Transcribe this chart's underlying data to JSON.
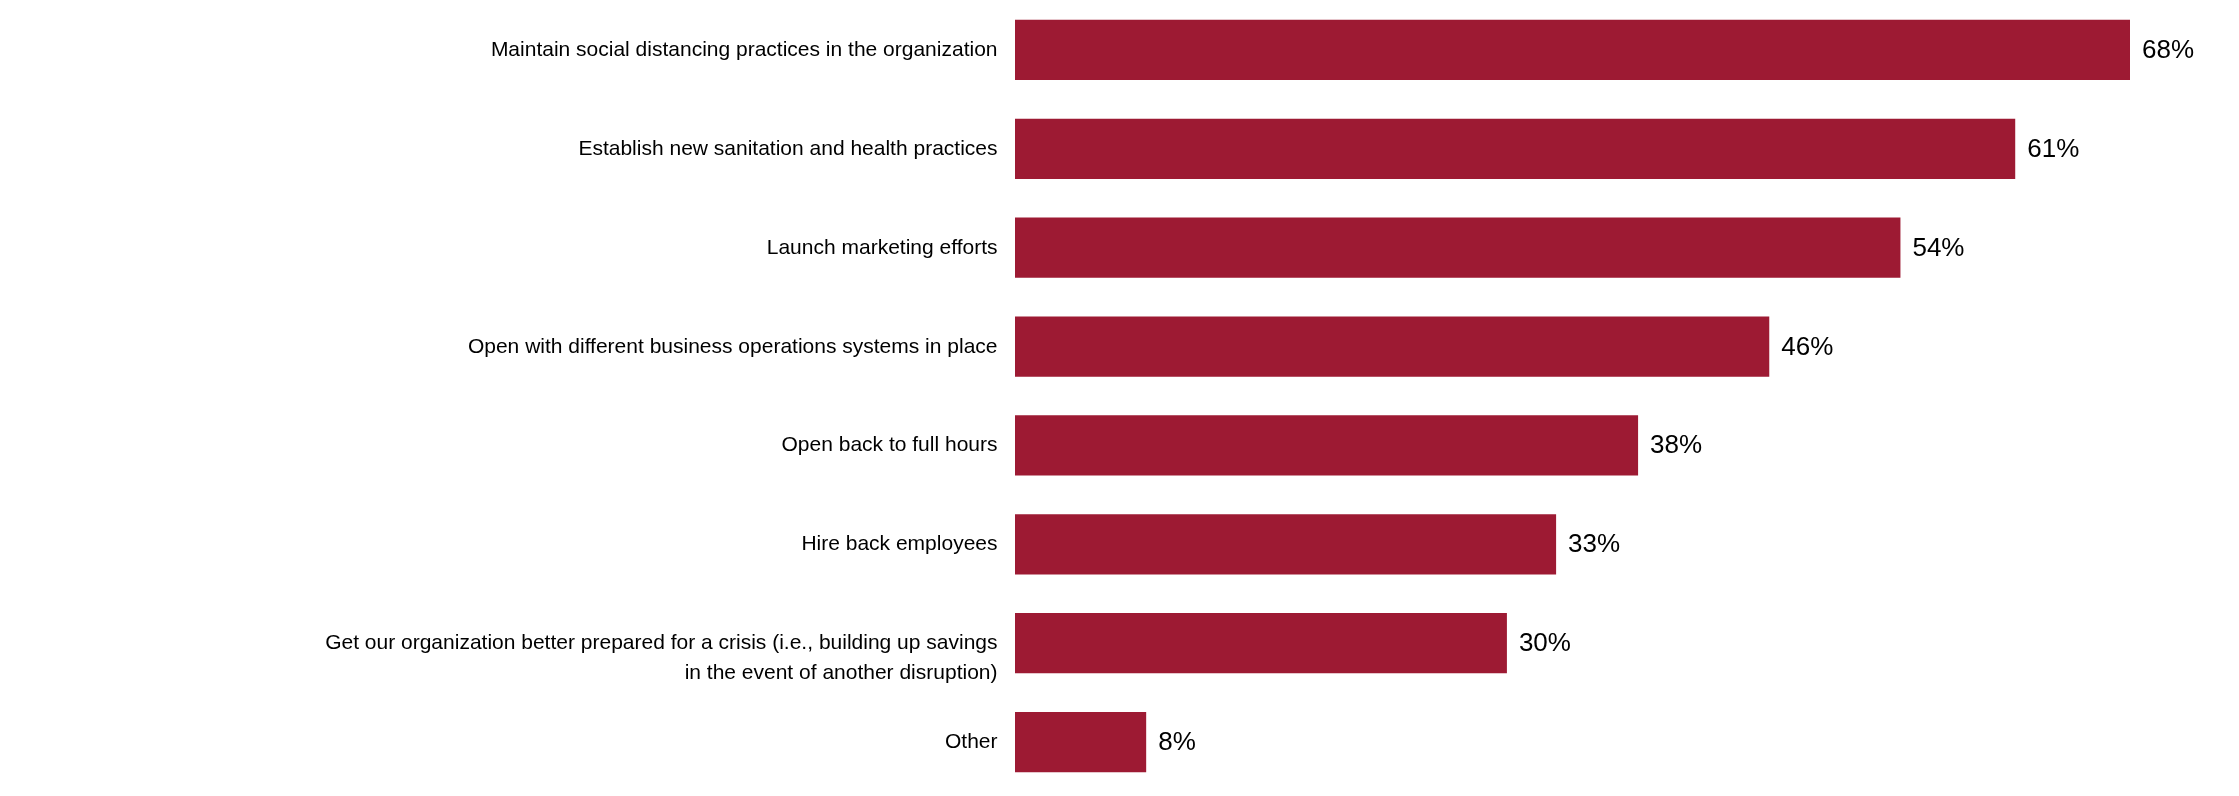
{
  "chart_data": {
    "type": "bar",
    "orientation": "horizontal",
    "categories": [
      "Maintain social distancing practices in the organization",
      "Establish new sanitation and health practices",
      "Launch marketing efforts",
      "Open with different business operations systems in place",
      "Open back to full hours",
      "Hire back employees",
      "Get our organization better prepared for a crisis (i.e., building up savings in the event of another disruption)",
      "Other"
    ],
    "values": [
      68,
      61,
      54,
      46,
      38,
      33,
      30,
      8
    ],
    "value_labels": [
      "68%",
      "61%",
      "54%",
      "46%",
      "38%",
      "33%",
      "30%",
      "8%"
    ],
    "color": "#9d1a33"
  }
}
